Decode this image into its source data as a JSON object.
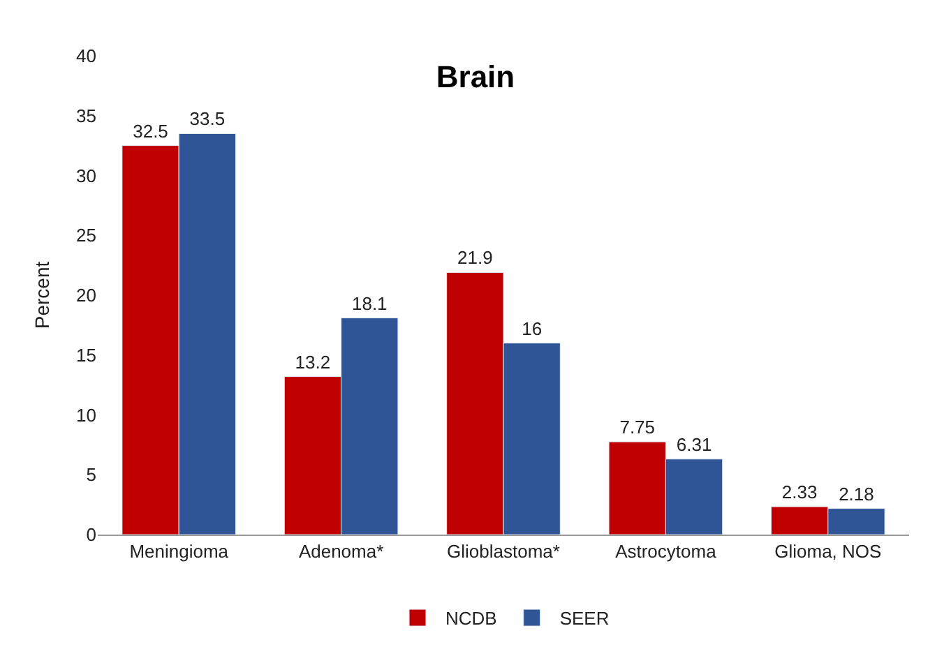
{
  "chart_data": {
    "type": "bar",
    "title": "Brain",
    "ylabel": "Percent",
    "categories": [
      "Meningioma",
      "Adenoma*",
      "Glioblastoma*",
      "Astrocytoma",
      "Glioma, NOS"
    ],
    "series": [
      {
        "name": "NCDB",
        "color": "#c00000",
        "values": [
          32.5,
          13.2,
          21.9,
          7.75,
          2.33
        ]
      },
      {
        "name": "SEER",
        "color": "#2f5597",
        "values": [
          33.5,
          18.1,
          16,
          6.31,
          2.18
        ]
      }
    ],
    "ylim": [
      0,
      40
    ],
    "yticks": [
      0,
      5,
      10,
      15,
      20,
      25,
      30,
      35,
      40
    ],
    "data_labels": true,
    "legend": "bottom"
  }
}
